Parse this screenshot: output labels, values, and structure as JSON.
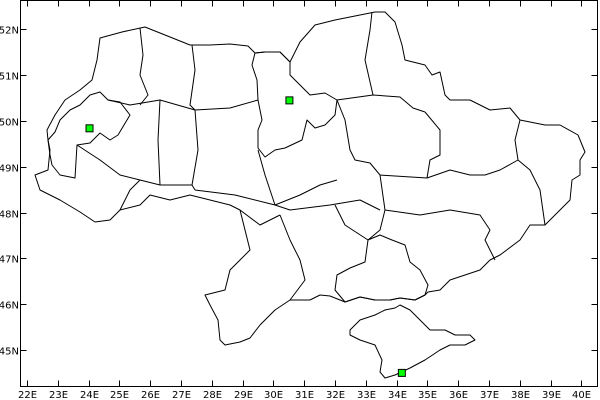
{
  "map": {
    "x_ticks": [
      {
        "lon": 22,
        "label": "22E"
      },
      {
        "lon": 23,
        "label": "23E"
      },
      {
        "lon": 24,
        "label": "24E"
      },
      {
        "lon": 25,
        "label": "25E"
      },
      {
        "lon": 26,
        "label": "26E"
      },
      {
        "lon": 27,
        "label": "27E"
      },
      {
        "lon": 28,
        "label": "28E"
      },
      {
        "lon": 29,
        "label": "29E"
      },
      {
        "lon": 30,
        "label": "30E"
      },
      {
        "lon": 31,
        "label": "31E"
      },
      {
        "lon": 32,
        "label": "32E"
      },
      {
        "lon": 33,
        "label": "33E"
      },
      {
        "lon": 34,
        "label": "34E"
      },
      {
        "lon": 35,
        "label": "35E"
      },
      {
        "lon": 36,
        "label": "36E"
      },
      {
        "lon": 37,
        "label": "37E"
      },
      {
        "lon": 38,
        "label": "38E"
      },
      {
        "lon": 39,
        "label": "39E"
      },
      {
        "lon": 40,
        "label": "40E"
      }
    ],
    "y_ticks": [
      {
        "lat": 45,
        "label": "45N"
      },
      {
        "lat": 46,
        "label": "46N"
      },
      {
        "lat": 47,
        "label": "47N"
      },
      {
        "lat": 48,
        "label": "48N"
      },
      {
        "lat": 49,
        "label": "49N"
      },
      {
        "lat": 50,
        "label": "50N"
      },
      {
        "lat": 51,
        "label": "51N"
      },
      {
        "lat": 52,
        "label": "52N"
      }
    ],
    "markers": [
      {
        "lon": 24.03,
        "lat": 49.84
      },
      {
        "lon": 30.52,
        "lat": 50.45
      },
      {
        "lon": 34.17,
        "lat": 44.5
      }
    ],
    "colors": {
      "highlighted_region": "#c0c0c0",
      "marker": "#00ff00",
      "border": "#000000",
      "background": "#ffffff"
    }
  }
}
